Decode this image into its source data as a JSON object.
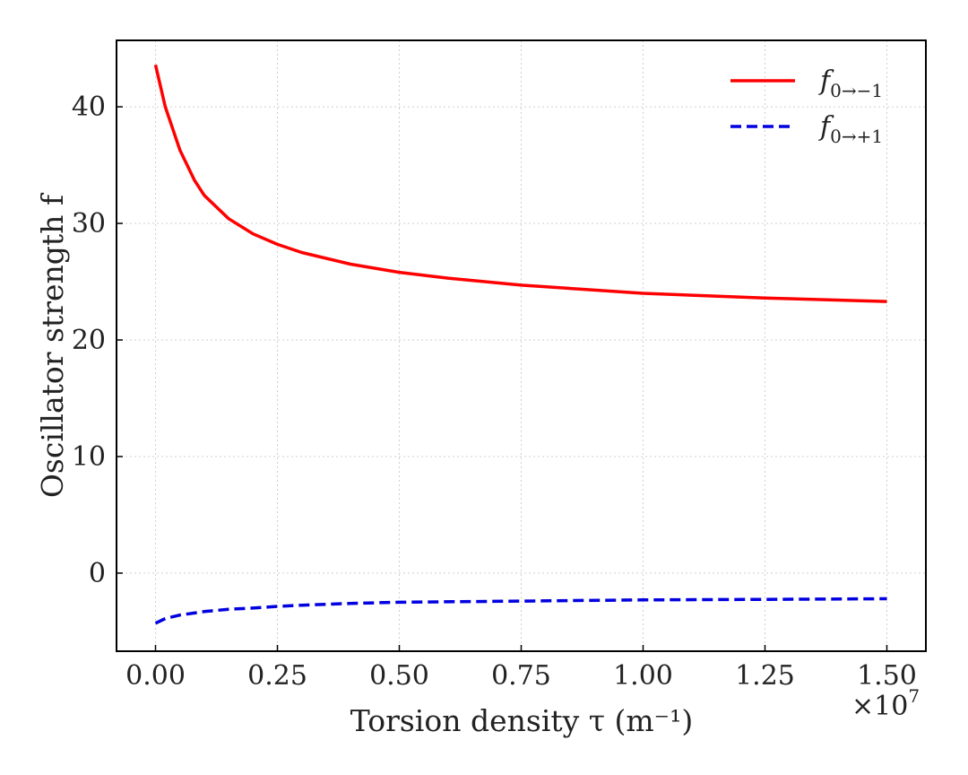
{
  "chart_data": {
    "type": "line",
    "xlabel": "Torsion density τ (m⁻¹)",
    "ylabel": "Oscillator strength f",
    "x_offset_label": {
      "base": "×10",
      "exponent": "7"
    },
    "xlim": [
      -0.08,
      1.58
    ],
    "ylim": [
      -6.7,
      45.7
    ],
    "x_ticks": [
      0.0,
      0.25,
      0.5,
      0.75,
      1.0,
      1.25,
      1.5
    ],
    "x_tick_labels": [
      "0.00",
      "0.25",
      "0.50",
      "0.75",
      "1.00",
      "1.25",
      "1.50"
    ],
    "y_ticks": [
      0,
      10,
      20,
      30,
      40
    ],
    "y_tick_labels": [
      "0",
      "10",
      "20",
      "30",
      "40"
    ],
    "grid": true,
    "legend_position": "top-right",
    "series": [
      {
        "name": "f₀→₋₁",
        "name_main": "f",
        "name_sub": "0→−1",
        "color": "#ff0000",
        "style": "solid",
        "x": [
          0.0,
          0.02,
          0.05,
          0.08,
          0.1,
          0.15,
          0.2,
          0.25,
          0.3,
          0.4,
          0.5,
          0.6,
          0.75,
          1.0,
          1.25,
          1.5
        ],
        "values": [
          43.6,
          40.0,
          36.3,
          33.7,
          32.4,
          30.4,
          29.1,
          28.2,
          27.5,
          26.5,
          25.8,
          25.3,
          24.7,
          24.0,
          23.6,
          23.3
        ]
      },
      {
        "name": "f₀→₊₁",
        "name_main": "f",
        "name_sub": "0→+1",
        "color": "#0000e0",
        "style": "dashed",
        "x": [
          0.0,
          0.02,
          0.05,
          0.1,
          0.15,
          0.2,
          0.25,
          0.3,
          0.4,
          0.5,
          0.75,
          1.0,
          1.25,
          1.5
        ],
        "values": [
          -4.3,
          -3.9,
          -3.6,
          -3.3,
          -3.1,
          -3.0,
          -2.85,
          -2.75,
          -2.6,
          -2.5,
          -2.4,
          -2.3,
          -2.25,
          -2.2
        ]
      }
    ]
  }
}
